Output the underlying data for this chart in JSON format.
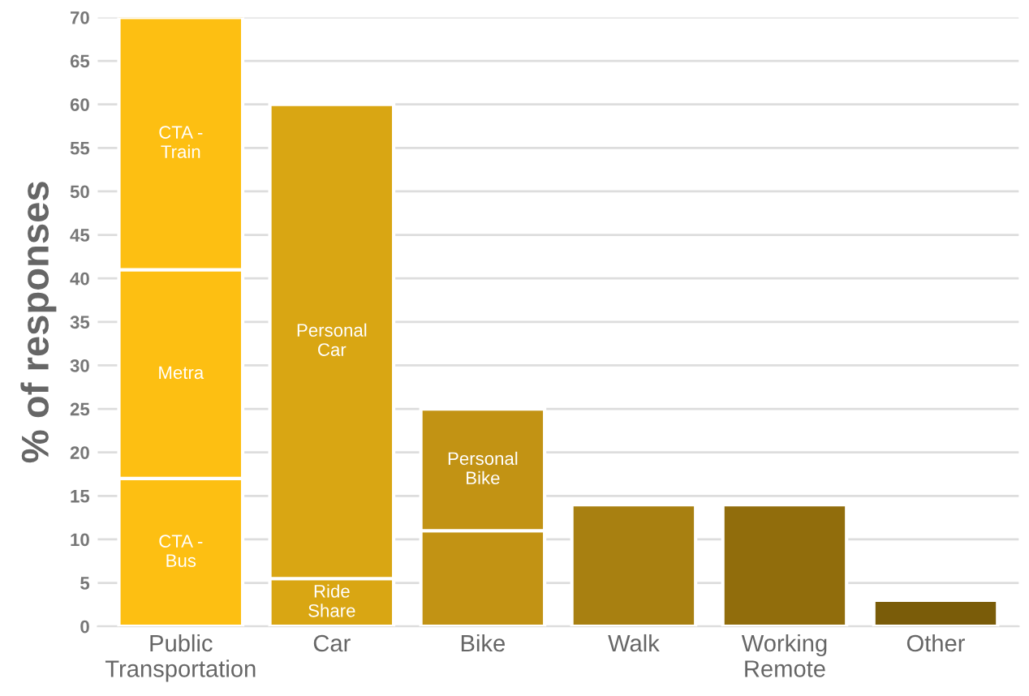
{
  "chart_data": {
    "type": "bar",
    "stacked": true,
    "ylabel": "% of responses",
    "categories": [
      "Public\nTransportation",
      "Car",
      "Bike",
      "Walk",
      "Working\nRemote",
      "Other"
    ],
    "series": [
      {
        "colors": [
          "#fdbf12",
          "#d9a613",
          "#c29314",
          "#a88011",
          "#916d0c",
          "#7a5c09"
        ],
        "values": [
          17,
          5.5,
          11,
          14,
          14,
          3
        ],
        "value_labels": [
          "CTA -\nBus",
          "Ride\nShare",
          null,
          null,
          null,
          null
        ]
      },
      {
        "colors": [
          "#fdbf12",
          "#d9a613",
          "#c29314",
          "#a88011",
          "#916d0c",
          "#7a5c09"
        ],
        "values": [
          24,
          54.5,
          14,
          null,
          null,
          null
        ],
        "value_labels": [
          "Metra",
          "Personal\nCar",
          "Personal\nBike",
          null,
          null,
          null
        ]
      },
      {
        "colors": [
          "#fdbf12",
          "#d9a613",
          "#c29314",
          "#a88011",
          "#916d0c",
          "#7a5c09"
        ],
        "values": [
          29,
          null,
          null,
          null,
          null,
          null
        ],
        "value_labels": [
          "CTA -\nTrain",
          null,
          null,
          null,
          null,
          null
        ]
      }
    ],
    "ylim": [
      0,
      70
    ],
    "yticks": [
      0,
      5,
      10,
      15,
      20,
      25,
      30,
      35,
      40,
      45,
      50,
      55,
      60,
      65,
      70
    ],
    "grid": "y",
    "legend": false
  }
}
